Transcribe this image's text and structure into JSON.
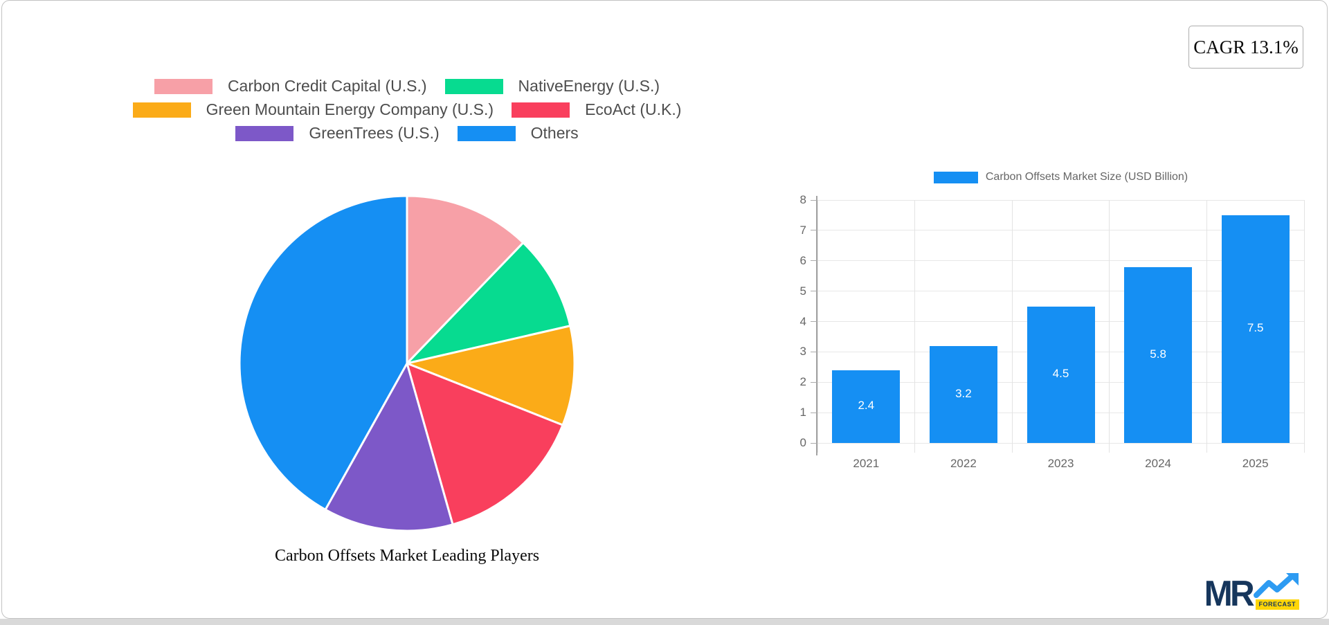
{
  "cagr_badge": {
    "label": "CAGR 13.1%"
  },
  "logo": {
    "mr": "MR",
    "forecast": "FORECAST",
    "navy": "#16365c",
    "blue": "#2d9bf2",
    "yellow": "#ffd608"
  },
  "chart_data": [
    {
      "type": "pie",
      "title": "Carbon Offsets Market Leading Players",
      "labels": [
        "Carbon Credit Capital (U.S.)",
        "NativeEnergy (U.S.)",
        "Green Mountain Energy Company (U.S.)",
        "EcoAct (U.K.)",
        "GreenTrees (U.S.)",
        "Others"
      ],
      "values": [
        12.2,
        9.2,
        9.6,
        14.6,
        12.5,
        41.9
      ],
      "unit": "% share",
      "colors": [
        "#f7a0a7",
        "#07db90",
        "#fbab18",
        "#f93f5d",
        "#7d58c8",
        "#158ff3"
      ],
      "start_angle_deg": 0,
      "direction": "clockwise",
      "slice_border_color": "#ffffff",
      "legend_position": "top",
      "legend_rows": [
        [
          0,
          1
        ],
        [
          2,
          3
        ],
        [
          4,
          5
        ]
      ]
    },
    {
      "type": "bar",
      "legend": "Carbon Offsets Market Size (USD Billion)",
      "categories": [
        "2021",
        "2022",
        "2023",
        "2024",
        "2025"
      ],
      "values": [
        2.4,
        3.2,
        4.5,
        5.8,
        7.5
      ],
      "ylim": [
        0,
        8
      ],
      "yticks": [
        0,
        1,
        2,
        3,
        4,
        5,
        6,
        7,
        8
      ],
      "grid": true,
      "bar_color": "#158ff3",
      "value_label_color": "#ffffff"
    }
  ]
}
